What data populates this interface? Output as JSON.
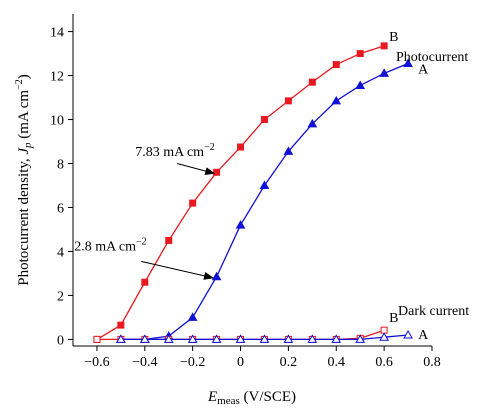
{
  "chart_data": {
    "type": "line",
    "xlabel_main": "E",
    "xlabel_sub": "meas",
    "xlabel_unit": " (V/SCE)",
    "ylabel_pre": "Photocurrent density, ",
    "ylabel_var": "J",
    "ylabel_sub": "p",
    "ylabel_unit": " (mA cm",
    "ylabel_exp": "−2",
    "ylabel_close": ")",
    "xlim": [
      -0.7,
      0.8
    ],
    "ylim": [
      -0.3,
      14.8
    ],
    "xticks": [
      -0.6,
      -0.4,
      -0.2,
      0,
      0.2,
      0.4,
      0.6,
      0.8
    ],
    "xtick_labels": [
      "−0.6",
      "−0.4",
      "−0.2",
      "0",
      "0.2",
      "0.4",
      "0.6",
      "0.8"
    ],
    "yticks": [
      0,
      2,
      4,
      6,
      8,
      10,
      12,
      14
    ],
    "ytick_labels": [
      "0",
      "2",
      "4",
      "6",
      "8",
      "10",
      "12",
      "14"
    ],
    "series": [
      {
        "name": "B",
        "group": "Photocurrent",
        "color": "#e8191f",
        "marker": "square-filled",
        "x": [
          -0.6,
          -0.5,
          -0.4,
          -0.3,
          -0.2,
          -0.1,
          0,
          0.1,
          0.2,
          0.3,
          0.4,
          0.5,
          0.6
        ],
        "y": [
          0.0,
          0.65,
          2.6,
          4.5,
          6.2,
          7.6,
          8.75,
          10.0,
          10.85,
          11.7,
          12.5,
          13.0,
          13.35
        ]
      },
      {
        "name": "A",
        "group": "Photocurrent",
        "color": "#1010d8",
        "marker": "triangle-filled",
        "x": [
          -0.5,
          -0.4,
          -0.3,
          -0.2,
          -0.1,
          0,
          0.1,
          0.2,
          0.3,
          0.4,
          0.5,
          0.6,
          0.7
        ],
        "y": [
          0.0,
          0.0,
          0.15,
          1.0,
          2.85,
          5.2,
          7.0,
          8.55,
          9.8,
          10.85,
          11.55,
          12.1,
          12.55
        ]
      },
      {
        "name": "B",
        "group": "Dark current",
        "color": "#e8191f",
        "marker": "square-open",
        "x": [
          -0.6,
          -0.5,
          -0.4,
          -0.3,
          -0.2,
          -0.1,
          0,
          0.1,
          0.2,
          0.3,
          0.4,
          0.5,
          0.6
        ],
        "y": [
          0.0,
          0.0,
          0.0,
          0.0,
          0.0,
          0.0,
          0.0,
          0.0,
          0.0,
          0.0,
          0.0,
          0.05,
          0.42
        ]
      },
      {
        "name": "A",
        "group": "Dark current",
        "color": "#1010d8",
        "marker": "triangle-open",
        "x": [
          -0.5,
          -0.4,
          -0.3,
          -0.2,
          -0.1,
          0,
          0.1,
          0.2,
          0.3,
          0.4,
          0.5,
          0.6,
          0.7
        ],
        "y": [
          0.0,
          0.0,
          0.0,
          0.0,
          0.0,
          0.0,
          0.0,
          0.0,
          0.0,
          0.0,
          0.0,
          0.1,
          0.2
        ]
      }
    ],
    "group_labels": {
      "photocurrent": "Photocurrent",
      "dark": "Dark current"
    },
    "annotations": [
      {
        "value": "7.83",
        "unit": " mA cm",
        "exp": "−2",
        "text_at": [
          -0.44,
          8.35
        ],
        "arrow_from": [
          -0.265,
          8.0
        ],
        "arrow_to": [
          -0.11,
          7.55
        ]
      },
      {
        "value": "2.8",
        "unit": " mA cm",
        "exp": "−2",
        "text_at": [
          -0.695,
          4.05
        ],
        "arrow_from": [
          -0.415,
          3.55
        ],
        "arrow_to": [
          -0.115,
          2.8
        ]
      }
    ]
  }
}
